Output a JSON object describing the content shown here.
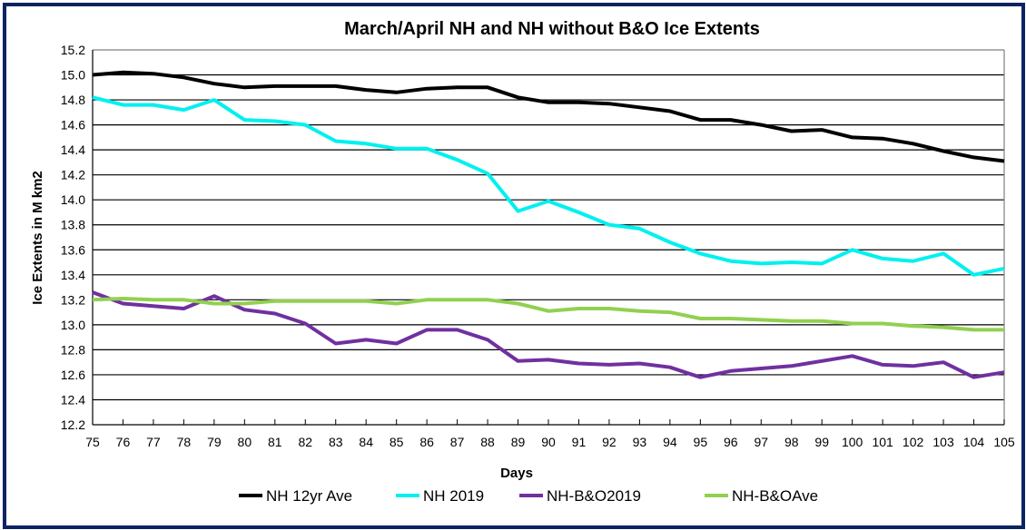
{
  "chart_data": {
    "type": "line",
    "title": "March/April NH and NH without B&O Ice Extents",
    "xlabel": "Days",
    "ylabel": "Ice Extents in M km2",
    "ylim": [
      12.2,
      15.2
    ],
    "yticks": [
      "12.2",
      "12.4",
      "12.6",
      "12.8",
      "13.0",
      "13.2",
      "13.4",
      "13.6",
      "13.8",
      "14.0",
      "14.2",
      "14.4",
      "14.6",
      "14.8",
      "15.0",
      "15.2"
    ],
    "x": [
      75,
      76,
      77,
      78,
      79,
      80,
      81,
      82,
      83,
      84,
      85,
      86,
      87,
      88,
      89,
      90,
      91,
      92,
      93,
      94,
      95,
      96,
      97,
      98,
      99,
      100,
      101,
      102,
      103,
      104,
      105
    ],
    "grid": true,
    "legend_position": "bottom",
    "series": [
      {
        "name": "NH 12yr Ave",
        "color": "#000000",
        "values": [
          15.0,
          15.02,
          15.01,
          14.98,
          14.93,
          14.9,
          14.91,
          14.91,
          14.91,
          14.88,
          14.86,
          14.89,
          14.9,
          14.9,
          14.82,
          14.78,
          14.78,
          14.77,
          14.74,
          14.71,
          14.64,
          14.64,
          14.6,
          14.55,
          14.56,
          14.5,
          14.49,
          14.45,
          14.39,
          14.34,
          14.31
        ]
      },
      {
        "name": "NH 2019",
        "color": "#00f0f0",
        "values": [
          14.82,
          14.76,
          14.76,
          14.72,
          14.8,
          14.64,
          14.63,
          14.6,
          14.47,
          14.45,
          14.41,
          14.41,
          14.32,
          14.21,
          13.91,
          13.99,
          13.9,
          13.8,
          13.77,
          13.66,
          13.57,
          13.51,
          13.49,
          13.5,
          13.49,
          13.6,
          13.53,
          13.51,
          13.57,
          13.4,
          13.45
        ]
      },
      {
        "name": "NH-B&O2019",
        "color": "#7030a0",
        "values": [
          13.26,
          13.17,
          13.15,
          13.13,
          13.23,
          13.12,
          13.09,
          13.01,
          12.85,
          12.88,
          12.85,
          12.96,
          12.96,
          12.88,
          12.71,
          12.72,
          12.69,
          12.68,
          12.69,
          12.66,
          12.58,
          12.63,
          12.65,
          12.67,
          12.71,
          12.75,
          12.68,
          12.67,
          12.7,
          12.58,
          12.62
        ]
      },
      {
        "name": "NH-B&OAve",
        "color": "#92d050",
        "values": [
          13.2,
          13.21,
          13.2,
          13.2,
          13.17,
          13.17,
          13.19,
          13.19,
          13.19,
          13.19,
          13.17,
          13.2,
          13.2,
          13.2,
          13.17,
          13.11,
          13.13,
          13.13,
          13.11,
          13.1,
          13.05,
          13.05,
          13.04,
          13.03,
          13.03,
          13.01,
          13.01,
          12.99,
          12.98,
          12.96,
          12.96
        ]
      }
    ]
  }
}
